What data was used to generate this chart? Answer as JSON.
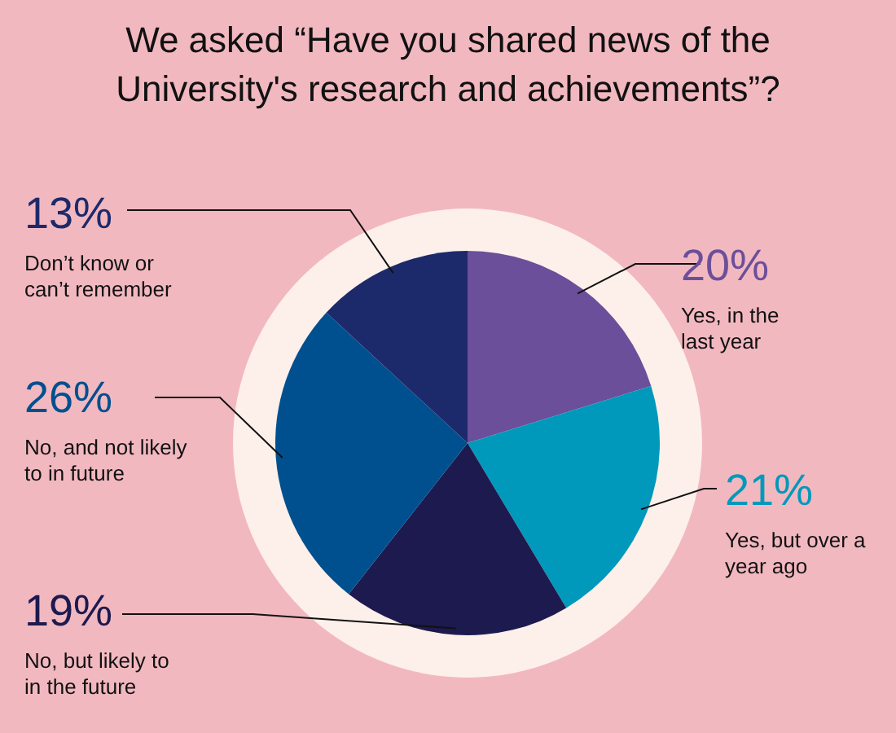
{
  "chart_data": {
    "type": "pie",
    "title": "We asked “Have you shared news of the University's research and achievements”?",
    "categories": [
      "Yes, in the last year",
      "Yes, but over a year ago",
      "No, but likely to in the future",
      "No, and not likely to in future",
      "Don’t know or can’t remember"
    ],
    "values": [
      20,
      21,
      19,
      26,
      13
    ],
    "colors": [
      "#6b4f9a",
      "#0099bb",
      "#1c1a4f",
      "#00508f",
      "#1c2a6b"
    ],
    "value_labels": [
      "20%",
      "21%",
      "19%",
      "26%",
      "13%"
    ]
  }
}
